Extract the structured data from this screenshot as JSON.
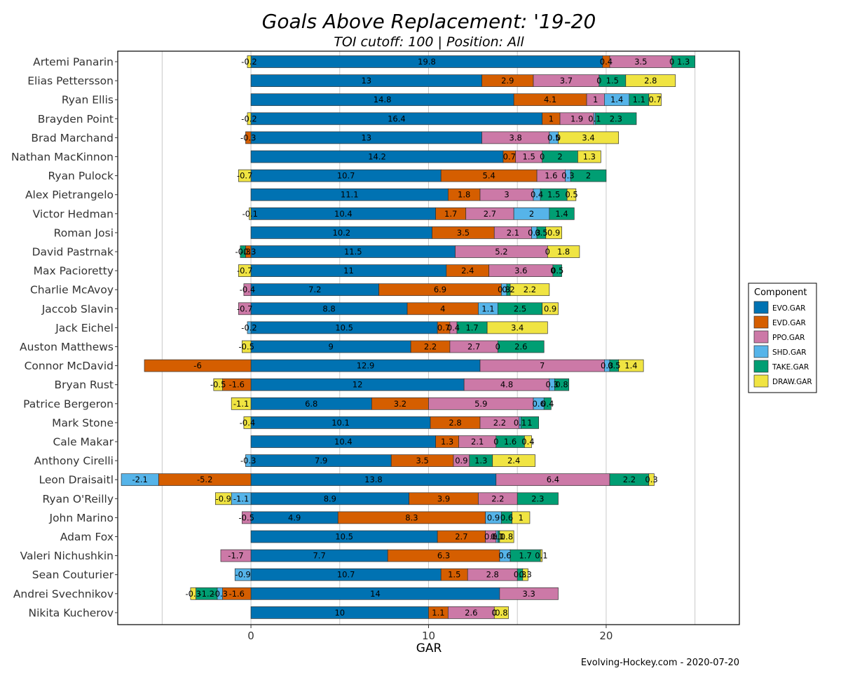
{
  "chart_data": {
    "type": "bar",
    "orientation": "horizontal",
    "stacked": true,
    "title": "Goals Above Replacement: '19-20",
    "subtitle": "TOI cutoff: 100 | Position: All",
    "xlabel": "GAR",
    "ylabel": "",
    "xlim": [
      -7.5,
      27.5
    ],
    "xticks": [
      0,
      10,
      20
    ],
    "grid": true,
    "legend": {
      "title": "Component",
      "position": "right",
      "entries": [
        "EVO.GAR",
        "EVD.GAR",
        "PPO.GAR",
        "SHD.GAR",
        "TAKE.GAR",
        "DRAW.GAR"
      ]
    },
    "colors": {
      "EVO.GAR": "#0072b2",
      "EVD.GAR": "#d55e00",
      "PPO.GAR": "#cc79a7",
      "SHD.GAR": "#56b4e9",
      "TAKE.GAR": "#009e73",
      "DRAW.GAR": "#f0e442"
    },
    "components_order": [
      "EVO.GAR",
      "EVD.GAR",
      "PPO.GAR",
      "SHD.GAR",
      "TAKE.GAR",
      "DRAW.GAR"
    ],
    "categories": [
      "Artemi Panarin",
      "Elias Pettersson",
      "Ryan Ellis",
      "Brayden Point",
      "Brad Marchand",
      "Nathan MacKinnon",
      "Ryan Pulock",
      "Alex Pietrangelo",
      "Victor Hedman",
      "Roman Josi",
      "David Pastrnak",
      "Max Pacioretty",
      "Charlie McAvoy",
      "Jaccob Slavin",
      "Jack Eichel",
      "Auston Matthews",
      "Connor McDavid",
      "Bryan Rust",
      "Patrice Bergeron",
      "Mark Stone",
      "Cale Makar",
      "Anthony Cirelli",
      "Leon Draisaitl",
      "Ryan O'Reilly",
      "John Marino",
      "Adam Fox",
      "Valeri Nichushkin",
      "Sean Couturier",
      "Andrei Svechnikov",
      "Nikita Kucherov"
    ],
    "series": [
      {
        "name": "EVO.GAR",
        "values": [
          19.8,
          13,
          14.8,
          16.4,
          13,
          14.2,
          10.7,
          11.1,
          10.4,
          10.2,
          11.5,
          11,
          7.2,
          8.8,
          10.5,
          9,
          12.9,
          12,
          6.8,
          10.1,
          10.4,
          7.9,
          13.8,
          8.9,
          4.9,
          10.5,
          7.7,
          10.7,
          14,
          10
        ]
      },
      {
        "name": "EVD.GAR",
        "values": [
          0.4,
          2.9,
          4.1,
          1,
          -0.3,
          0.7,
          5.4,
          1.8,
          1.7,
          3.5,
          -0.3,
          2.4,
          6.9,
          4,
          0.7,
          2.2,
          -6,
          -1.6,
          3.2,
          2.8,
          1.3,
          3.5,
          -5.2,
          3.9,
          8.3,
          2.7,
          6.3,
          1.5,
          -1.6,
          1.1
        ]
      },
      {
        "name": "PPO.GAR",
        "values": [
          3.5,
          3.7,
          1,
          1.9,
          3.8,
          1.5,
          1.6,
          3,
          2.7,
          2.1,
          5.2,
          3.6,
          -0.4,
          -0.7,
          0.4,
          2.7,
          7,
          4.8,
          5.9,
          2.2,
          2.1,
          0.9,
          6.4,
          2.2,
          -0.5,
          0.6,
          -1.7,
          2.8,
          3.3,
          2.6
        ]
      },
      {
        "name": "SHD.GAR",
        "values": [
          0,
          0,
          1.4,
          0.1,
          0.5,
          0,
          0.3,
          0.4,
          2,
          0.3,
          0,
          0,
          0.3,
          1.1,
          -0.2,
          0,
          0.3,
          0.3,
          0.6,
          0.1,
          0,
          -0.3,
          -2.1,
          -1.1,
          0.9,
          0.1,
          0.6,
          -0.9,
          -0.3,
          0
        ]
      },
      {
        "name": "TAKE.GAR",
        "values": [
          1.3,
          1.5,
          1.1,
          2.3,
          0,
          2,
          2,
          1.5,
          1.4,
          0.5,
          -0.3,
          0.5,
          0.2,
          2.5,
          1.7,
          2.6,
          0.5,
          0.8,
          0.4,
          1,
          1.6,
          1.3,
          2.2,
          2.3,
          0.6,
          0.1,
          1.7,
          0.3,
          -1.2,
          0
        ]
      },
      {
        "name": "DRAW.GAR",
        "values": [
          -0.2,
          2.8,
          0.7,
          -0.2,
          3.4,
          1.3,
          -0.7,
          0.5,
          -0.1,
          0.9,
          1.8,
          -0.7,
          2.2,
          0.9,
          3.4,
          -0.5,
          1.4,
          -0.5,
          -1.1,
          -0.4,
          0.4,
          2.4,
          0.3,
          -0.9,
          1,
          0.8,
          0.1,
          0.3,
          -0.3,
          0.8
        ]
      }
    ]
  },
  "caption": "Evolving-Hockey.com - 2020-07-20"
}
